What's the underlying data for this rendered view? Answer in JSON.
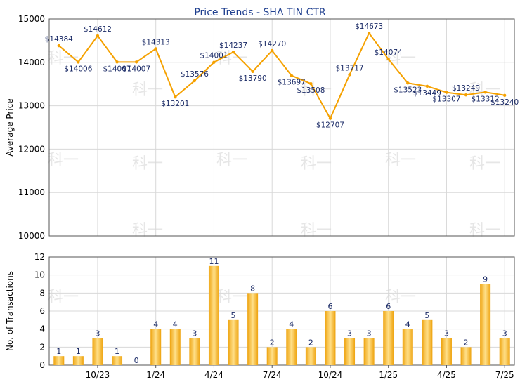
{
  "colors": {
    "title": "#1f3f8f",
    "line": "#f5a100",
    "bar_light": "#ffe08a",
    "bar_dark": "#eea30e",
    "grid": "#d8d8d8",
    "axis": "#555555",
    "label": "#1a2a66",
    "watermark": "#e6e6e6"
  },
  "chart_data": [
    {
      "type": "line",
      "title": "Price Trends - SHA TIN CTR",
      "ylabel": "Average Price",
      "ylim": [
        10000,
        15000
      ],
      "yticks": [
        "10000",
        "11000",
        "12000",
        "13000",
        "14000",
        "15000"
      ],
      "grid": true,
      "series": [
        {
          "values": [
            14384,
            14006,
            14612,
            14007,
            14007,
            14313,
            13201,
            13576,
            14001,
            14237,
            13790,
            14270,
            13697,
            13508,
            12707,
            13717,
            14673,
            14074,
            13523,
            13449,
            13307,
            13249,
            13312,
            13240
          ],
          "labels": [
            "$14384",
            "$14006",
            "$14612",
            "$14007",
            "$14007",
            "$14313",
            "$13201",
            "$13576",
            "$14001",
            "$14237",
            "$13790",
            "$14270",
            "$13697",
            "$13508",
            "$12707",
            "$13717",
            "$14673",
            "$14074",
            "$13523",
            "$13449",
            "$13307",
            "$13249",
            "$13312",
            "$13240"
          ]
        }
      ]
    },
    {
      "type": "bar",
      "ylabel": "No. of Transactions",
      "ylim": [
        0,
        12
      ],
      "yticks": [
        "0",
        "2",
        "4",
        "6",
        "8",
        "10",
        "12"
      ],
      "grid": true,
      "values": [
        1,
        1,
        3,
        1,
        0,
        4,
        4,
        3,
        11,
        5,
        8,
        2,
        4,
        2,
        6,
        3,
        3,
        6,
        4,
        5,
        3,
        2,
        9,
        3
      ],
      "xticks": [
        "10/23",
        "1/24",
        "4/24",
        "7/24",
        "10/24",
        "1/25",
        "4/25",
        "7/25"
      ]
    }
  ],
  "watermark": "科一"
}
